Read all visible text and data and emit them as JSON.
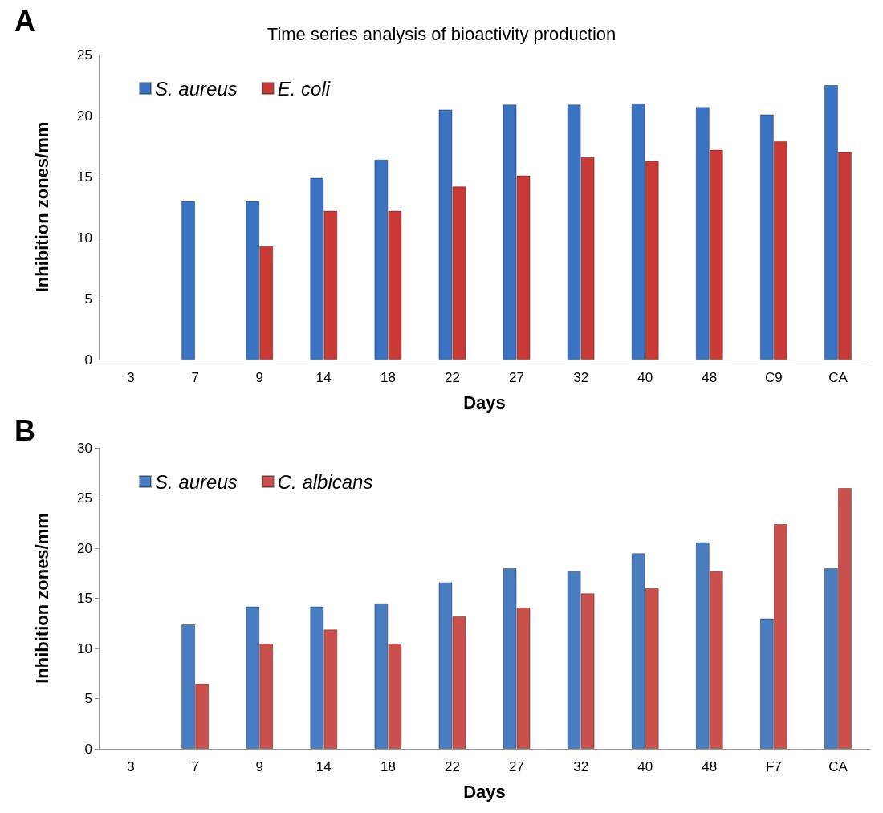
{
  "chart_data": [
    {
      "type": "bar",
      "title": "Time series analysis of bioactivity production",
      "xlabel": "Days",
      "ylabel": "Inhibition zones/mm",
      "annotations": [
        "A"
      ],
      "categories": [
        "3",
        "7",
        "9",
        "14",
        "18",
        "22",
        "27",
        "32",
        "40",
        "48",
        "C9",
        "CA"
      ],
      "series": [
        {
          "name": "S. aureus",
          "color": "#3a73c2",
          "values": [
            null,
            13.0,
            13.0,
            14.9,
            16.4,
            20.5,
            20.9,
            20.9,
            21.0,
            20.7,
            20.1,
            22.5
          ]
        },
        {
          "name": "E. coli",
          "color": "#c93a37",
          "values": [
            null,
            null,
            9.3,
            12.2,
            12.2,
            14.2,
            15.1,
            16.6,
            16.3,
            17.2,
            17.9,
            17.0
          ]
        }
      ],
      "ylim": [
        0,
        25
      ],
      "yticks": [
        0,
        5,
        10,
        15,
        20,
        25
      ],
      "grid": false,
      "legend": "top left"
    },
    {
      "type": "bar",
      "xlabel": "Days",
      "ylabel": "Inhibition zones/mm",
      "annotations": [
        "B"
      ],
      "categories": [
        "3",
        "7",
        "9",
        "14",
        "18",
        "22",
        "27",
        "32",
        "40",
        "48",
        "F7",
        "CA"
      ],
      "series": [
        {
          "name": "S. aureus",
          "color": "#4a7dc0",
          "values": [
            null,
            12.4,
            14.2,
            14.2,
            14.5,
            16.6,
            18.0,
            17.7,
            19.5,
            20.6,
            13.0,
            18.0
          ]
        },
        {
          "name": "C. albicans",
          "color": "#c9504d",
          "values": [
            null,
            6.5,
            10.5,
            11.9,
            10.5,
            13.2,
            14.1,
            15.5,
            16.0,
            17.7,
            22.4,
            26.0
          ]
        }
      ],
      "ylim": [
        0,
        30
      ],
      "yticks": [
        0,
        5,
        10,
        15,
        20,
        25,
        30
      ],
      "grid": false,
      "legend": "top left"
    }
  ]
}
